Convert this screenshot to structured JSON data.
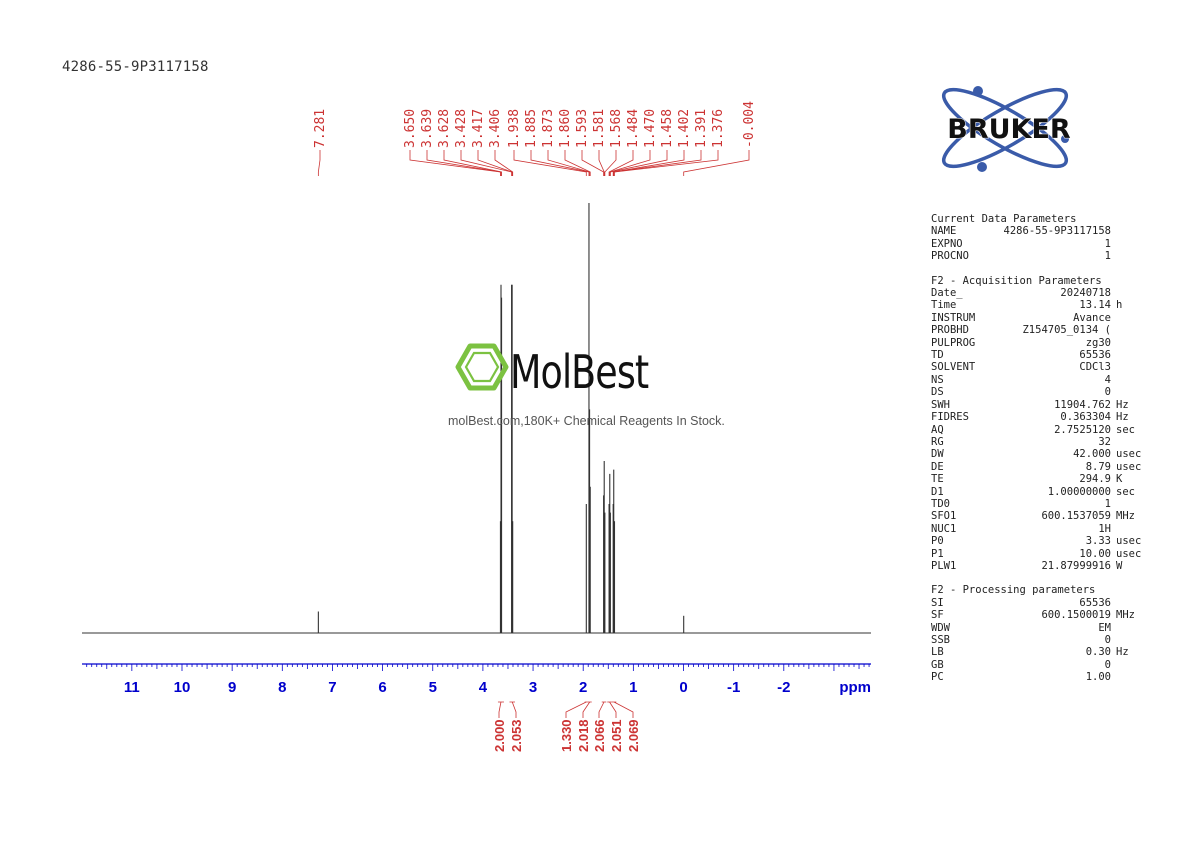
{
  "sample_id": "4286-55-9P3117158",
  "logo_text": "BRUKER",
  "watermark": {
    "name": "MolBest",
    "tagline": "molBest.com,180K+ Chemical Reagents In Stock."
  },
  "colors": {
    "axis": "#0000cc",
    "peak_labels": "#cc3333",
    "spectrum": "#333333",
    "watermark_green": "#7cc241",
    "logo_blue": "#3a5ba9"
  },
  "chart_data": {
    "type": "line",
    "title": "",
    "xlabel": "ppm",
    "ylabel": "",
    "xlim": [
      12,
      -3.8
    ],
    "x_reversed": true,
    "ticks": [
      11,
      10,
      9,
      8,
      7,
      6,
      5,
      4,
      3,
      2,
      1,
      0,
      -1,
      -2
    ],
    "tick_labels": [
      "11",
      "10",
      "9",
      "8",
      "7",
      "6",
      "5",
      "4",
      "3",
      "2",
      "1",
      "0",
      "-1",
      "-2"
    ],
    "peaks": [
      {
        "ppm": 7.281,
        "intensity": 0.05
      },
      {
        "ppm": 3.65,
        "intensity": 0.26
      },
      {
        "ppm": 3.639,
        "intensity": 0.81
      },
      {
        "ppm": 3.628,
        "intensity": 0.78
      },
      {
        "ppm": 3.428,
        "intensity": 0.81
      },
      {
        "ppm": 3.417,
        "intensity": 0.81
      },
      {
        "ppm": 3.406,
        "intensity": 0.26
      },
      {
        "ppm": 1.938,
        "intensity": 0.3
      },
      {
        "ppm": 1.885,
        "intensity": 1.0
      },
      {
        "ppm": 1.873,
        "intensity": 0.52
      },
      {
        "ppm": 1.86,
        "intensity": 0.34
      },
      {
        "ppm": 1.593,
        "intensity": 0.32
      },
      {
        "ppm": 1.581,
        "intensity": 0.4
      },
      {
        "ppm": 1.568,
        "intensity": 0.28
      },
      {
        "ppm": 1.484,
        "intensity": 0.3
      },
      {
        "ppm": 1.47,
        "intensity": 0.37
      },
      {
        "ppm": 1.458,
        "intensity": 0.28
      },
      {
        "ppm": 1.402,
        "intensity": 0.3
      },
      {
        "ppm": 1.391,
        "intensity": 0.38
      },
      {
        "ppm": 1.376,
        "intensity": 0.26
      },
      {
        "ppm": -0.004,
        "intensity": 0.04
      }
    ],
    "peak_labels": [
      "7.281",
      "3.650",
      "3.639",
      "3.628",
      "3.428",
      "3.417",
      "3.406",
      "1.938",
      "1.885",
      "1.873",
      "1.860",
      "1.593",
      "1.581",
      "1.568",
      "1.484",
      "1.470",
      "1.458",
      "1.402",
      "1.391",
      "1.376",
      "-0.004"
    ],
    "integrals": [
      {
        "value": "2.000",
        "from": 3.7,
        "to": 3.58
      },
      {
        "value": "2.053",
        "from": 3.47,
        "to": 3.36
      },
      {
        "value": "1.330",
        "from": 1.97,
        "to": 1.91
      },
      {
        "value": "2.018",
        "from": 1.91,
        "to": 1.83
      },
      {
        "value": "2.066",
        "from": 1.63,
        "to": 1.54
      },
      {
        "value": "2.051",
        "from": 1.52,
        "to": 1.43
      },
      {
        "value": "2.069",
        "from": 1.43,
        "to": 1.34
      }
    ]
  },
  "parameters": {
    "current": {
      "heading": "Current Data Parameters",
      "rows": [
        {
          "k": "NAME",
          "v": "4286-55-9P3117158",
          "u": ""
        },
        {
          "k": "EXPNO",
          "v": "1",
          "u": ""
        },
        {
          "k": "PROCNO",
          "v": "1",
          "u": ""
        }
      ]
    },
    "acquisition": {
      "heading": "F2 - Acquisition Parameters",
      "rows": [
        {
          "k": "Date_",
          "v": "20240718",
          "u": ""
        },
        {
          "k": "Time",
          "v": "13.14",
          "u": "h"
        },
        {
          "k": "INSTRUM",
          "v": "Avance",
          "u": ""
        },
        {
          "k": "PROBHD",
          "v": "Z154705_0134 (",
          "u": ""
        },
        {
          "k": "PULPROG",
          "v": "zg30",
          "u": ""
        },
        {
          "k": "TD",
          "v": "65536",
          "u": ""
        },
        {
          "k": "SOLVENT",
          "v": "CDCl3",
          "u": ""
        },
        {
          "k": "NS",
          "v": "4",
          "u": ""
        },
        {
          "k": "DS",
          "v": "0",
          "u": ""
        },
        {
          "k": "SWH",
          "v": "11904.762",
          "u": "Hz"
        },
        {
          "k": "FIDRES",
          "v": "0.363304",
          "u": "Hz"
        },
        {
          "k": "AQ",
          "v": "2.7525120",
          "u": "sec"
        },
        {
          "k": "RG",
          "v": "32",
          "u": ""
        },
        {
          "k": "DW",
          "v": "42.000",
          "u": "usec"
        },
        {
          "k": "DE",
          "v": "8.79",
          "u": "usec"
        },
        {
          "k": "TE",
          "v": "294.9",
          "u": "K"
        },
        {
          "k": "D1",
          "v": "1.00000000",
          "u": "sec"
        },
        {
          "k": "TD0",
          "v": "1",
          "u": ""
        },
        {
          "k": "SFO1",
          "v": "600.1537059",
          "u": "MHz"
        },
        {
          "k": "NUC1",
          "v": "1H",
          "u": ""
        },
        {
          "k": "P0",
          "v": "3.33",
          "u": "usec"
        },
        {
          "k": "P1",
          "v": "10.00",
          "u": "usec"
        },
        {
          "k": "PLW1",
          "v": "21.87999916",
          "u": "W"
        }
      ]
    },
    "processing": {
      "heading": "F2 - Processing parameters",
      "rows": [
        {
          "k": "SI",
          "v": "65536",
          "u": ""
        },
        {
          "k": "SF",
          "v": "600.1500019",
          "u": "MHz"
        },
        {
          "k": "WDW",
          "v": "EM",
          "u": ""
        },
        {
          "k": "SSB",
          "v": "0",
          "u": ""
        },
        {
          "k": "LB",
          "v": "0.30",
          "u": "Hz"
        },
        {
          "k": "GB",
          "v": "0",
          "u": ""
        },
        {
          "k": "PC",
          "v": "1.00",
          "u": ""
        }
      ]
    }
  }
}
